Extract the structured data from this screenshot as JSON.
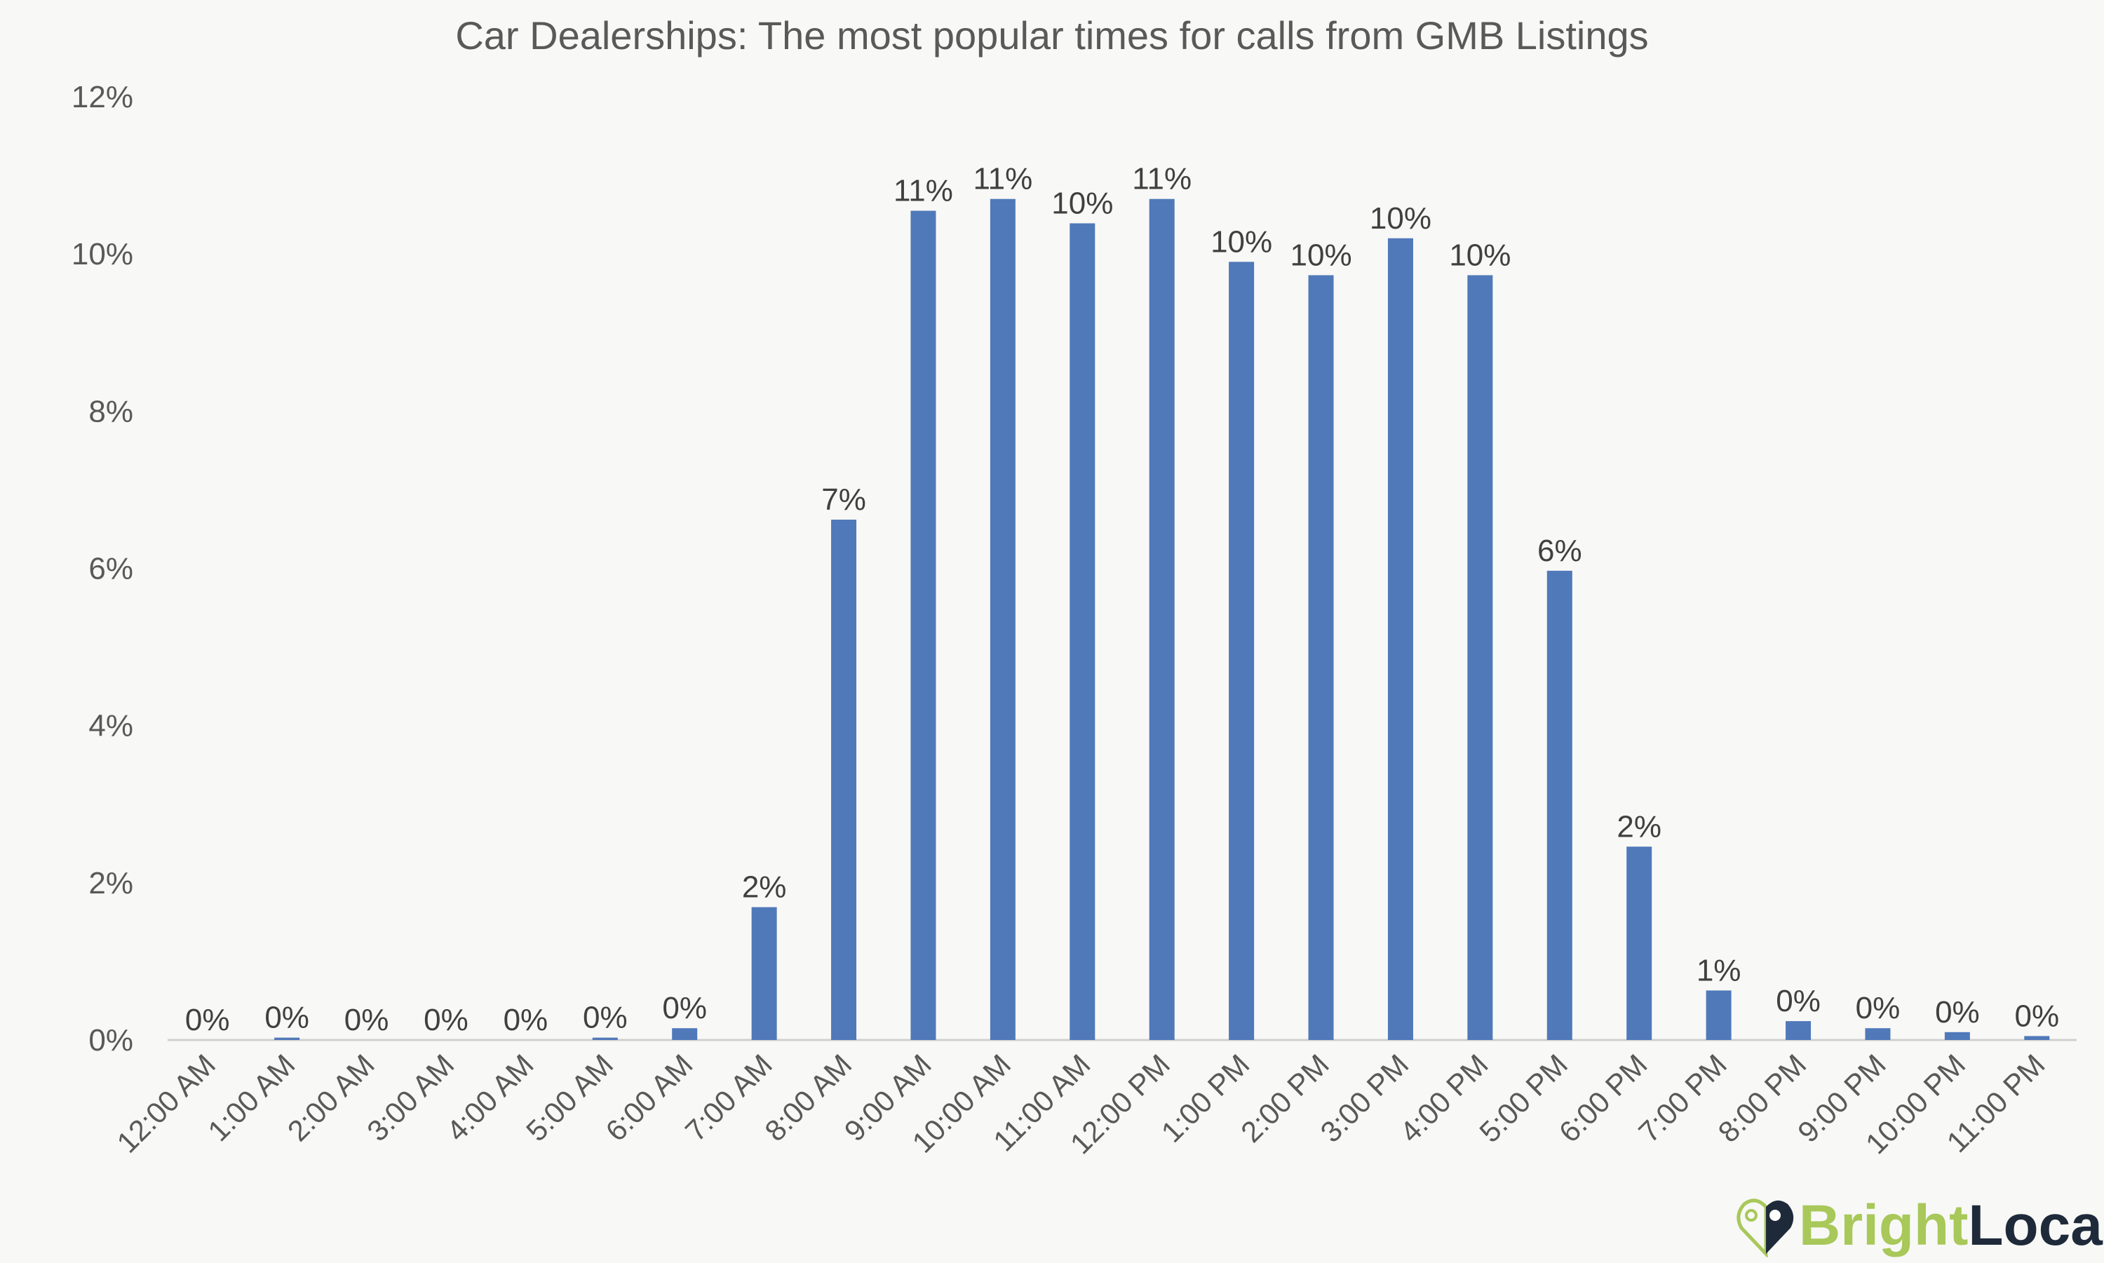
{
  "chart_data": {
    "type": "bar",
    "title": "Car Dealerships: The most popular times for calls from GMB Listings",
    "xlabel": "",
    "ylabel": "",
    "ylim": [
      0,
      12
    ],
    "yticks": [
      "0%",
      "2%",
      "4%",
      "6%",
      "8%",
      "10%",
      "12%"
    ],
    "grid": false,
    "bar_color": "#5079b9",
    "categories": [
      "12:00 AM",
      "1:00 AM",
      "2:00 AM",
      "3:00 AM",
      "4:00 AM",
      "5:00 AM",
      "6:00 AM",
      "7:00 AM",
      "8:00 AM",
      "9:00 AM",
      "10:00 AM",
      "11:00 AM",
      "12:00 PM",
      "1:00 PM",
      "2:00 PM",
      "3:00 PM",
      "4:00 PM",
      "5:00 PM",
      "6:00 PM",
      "7:00 PM",
      "8:00 PM",
      "9:00 PM",
      "10:00 PM",
      "11:00 PM"
    ],
    "values": [
      0.0,
      0.03,
      0.0,
      0.0,
      0.0,
      0.03,
      0.15,
      1.69,
      6.62,
      10.55,
      10.7,
      10.39,
      10.7,
      9.9,
      9.73,
      10.2,
      9.73,
      5.97,
      2.46,
      0.63,
      0.24,
      0.15,
      0.1,
      0.05
    ],
    "data_labels": [
      "0%",
      "0%",
      "0%",
      "0%",
      "0%",
      "0%",
      "0%",
      "2%",
      "7%",
      "11%",
      "11%",
      "10%",
      "11%",
      "10%",
      "10%",
      "10%",
      "10%",
      "6%",
      "2%",
      "1%",
      "0%",
      "0%",
      "0%",
      "0%"
    ]
  },
  "logo": {
    "part1": "Bright",
    "part2": "Local",
    "accent": "#a8c85a",
    "dark": "#1e2a3a"
  }
}
